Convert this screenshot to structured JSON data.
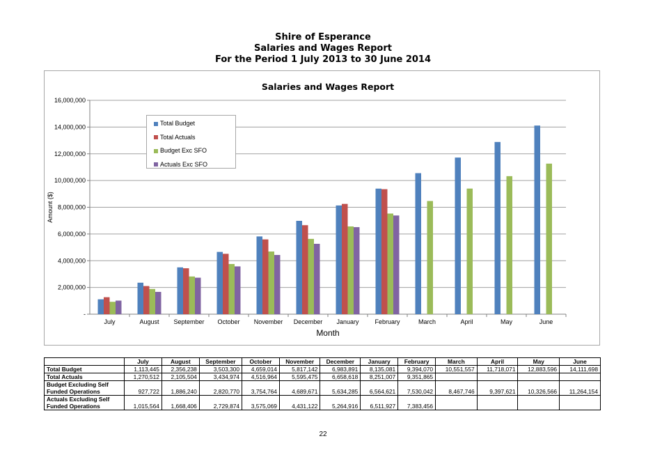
{
  "header": {
    "line1": "Shire of Esperance",
    "line2": "Salaries and Wages Report",
    "line3": "For the Period  1 July 2013 to 30 June 2014"
  },
  "colors": {
    "total_budget": "#4f81bd",
    "total_actuals": "#c0504d",
    "budget_exc_sfo": "#9bbb59",
    "actuals_exc_sfo": "#8064a2"
  },
  "chart_data": {
    "type": "bar",
    "title": "Salaries and Wages Report",
    "xlabel": "Month",
    "ylabel": "Amount ($)",
    "ylim": [
      0,
      16000000
    ],
    "yticks": [
      0,
      2000000,
      4000000,
      6000000,
      8000000,
      10000000,
      12000000,
      14000000,
      16000000
    ],
    "ytick_labels": [
      "-",
      "2,000,000",
      "4,000,000",
      "6,000,000",
      "8,000,000",
      "10,000,000",
      "12,000,000",
      "14,000,000",
      "16,000,000"
    ],
    "grid": true,
    "legend_position": "top-left",
    "categories": [
      "July",
      "August",
      "September",
      "October",
      "November",
      "December",
      "January",
      "February",
      "March",
      "April",
      "May",
      "June"
    ],
    "series": [
      {
        "name": "Total Budget",
        "values": [
          1113445,
          2356238,
          3503300,
          4659014,
          5817142,
          6983891,
          8135081,
          9394070,
          10551557,
          11718071,
          12883596,
          14111698
        ]
      },
      {
        "name": "Total Actuals",
        "values": [
          1270512,
          2105504,
          3434974,
          4516964,
          5595475,
          6658618,
          8251007,
          9351865,
          null,
          null,
          null,
          null
        ]
      },
      {
        "name": "Budget Exc SFO",
        "values": [
          927722,
          1886240,
          2820770,
          3754764,
          4689671,
          5634285,
          6564621,
          7530042,
          8467746,
          9397621,
          10326566,
          11264154
        ]
      },
      {
        "name": "Actuals Exc SFO",
        "values": [
          1015564,
          1668406,
          2729874,
          3575069,
          4431122,
          5264916,
          6511927,
          7383456,
          null,
          null,
          null,
          null
        ]
      }
    ]
  },
  "table": {
    "headers": [
      "July",
      "August",
      "September",
      "October",
      "November",
      "December",
      "January",
      "February",
      "March",
      "April",
      "May",
      "June"
    ],
    "rows": [
      {
        "label1": "Total Budget",
        "label2": "",
        "cells": [
          "1,113,445",
          "2,356,238",
          "3,503,300",
          "4,659,014",
          "5,817,142",
          "6,983,891",
          "8,135,081",
          "9,394,070",
          "10,551,557",
          "11,718,071",
          "12,883,596",
          "14,111,698"
        ]
      },
      {
        "label1": "Total Actuals",
        "label2": "",
        "cells": [
          "1,270,512",
          "2,105,504",
          "3,434,974",
          "4,516,964",
          "5,595,475",
          "6,658,618",
          "8,251,007",
          "9,351,865",
          "",
          "",
          "",
          ""
        ]
      },
      {
        "label1": "Budget Excluding Self",
        "label2": "Funded Operations",
        "cells": [
          "927,722",
          "1,886,240",
          "2,820,770",
          "3,754,764",
          "4,689,671",
          "5,634,285",
          "6,564,621",
          "7,530,042",
          "8,467,746",
          "9,397,621",
          "10,326,566",
          "11,264,154"
        ]
      },
      {
        "label1": "Actuals Excluding Self",
        "label2": "Funded Operations",
        "cells": [
          "1,015,564",
          "1,668,406",
          "2,729,874",
          "3,575,069",
          "4,431,122",
          "5,264,916",
          "6,511,927",
          "7,383,456",
          "",
          "",
          "",
          ""
        ]
      }
    ]
  },
  "page_number": "22"
}
